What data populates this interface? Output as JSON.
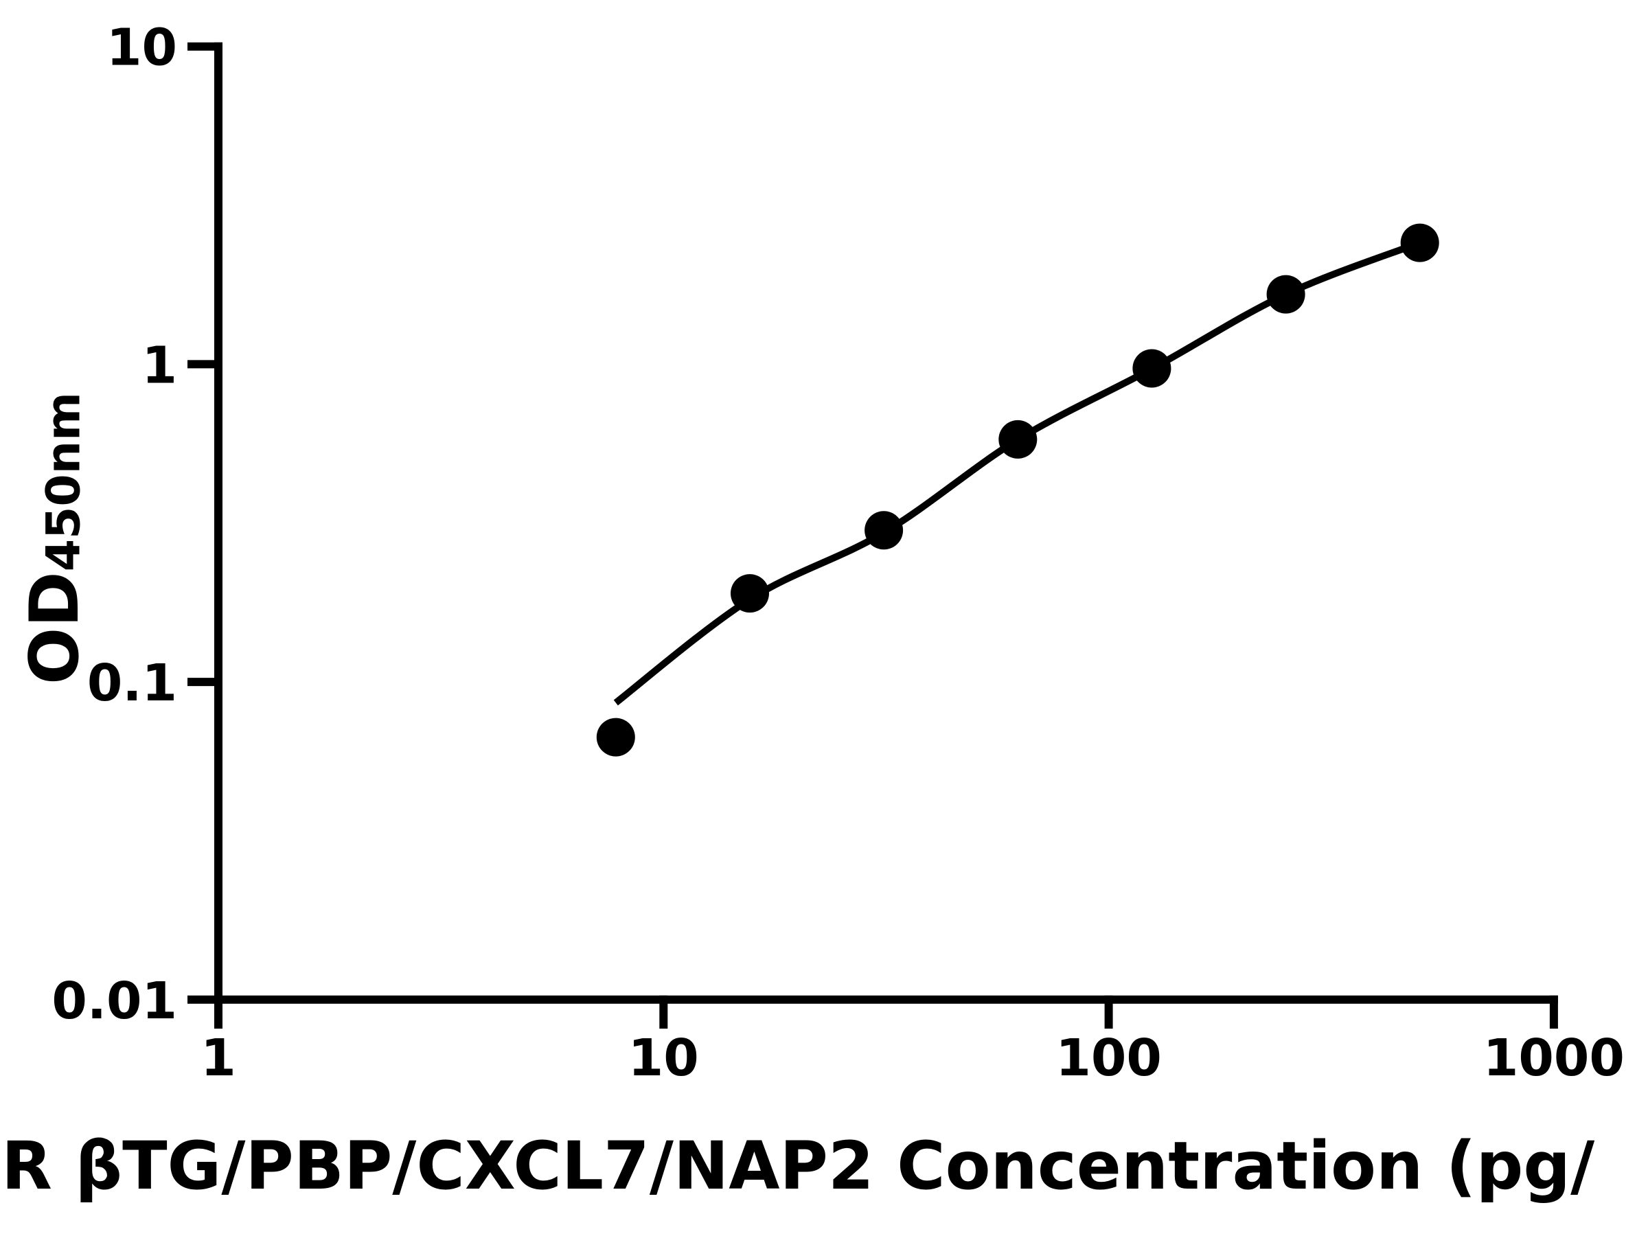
{
  "chart_data": {
    "type": "scatter",
    "title": "",
    "xlabel": "R βTG/PBP/CXCL7/NAP2 Concentration (pg/",
    "ylabel": "OD450nm",
    "ylabel_main": "OD",
    "ylabel_sub": "450nm",
    "x_axis": {
      "scale": "log",
      "range": [
        1,
        1000
      ],
      "tick_values": [
        1,
        10,
        100,
        1000
      ],
      "tick_labels": [
        "1",
        "10",
        "100",
        "1000"
      ]
    },
    "y_axis": {
      "scale": "log",
      "range": [
        0.01,
        10
      ],
      "tick_values": [
        0.01,
        0.1,
        1,
        10
      ],
      "tick_labels": [
        "0.01",
        "0.1",
        "1",
        "10"
      ]
    },
    "grid": false,
    "legend": "none",
    "series": [
      {
        "name": "standard-curve-points",
        "marker": "filled-circle",
        "color": "#000000",
        "points": [
          {
            "x": 7.8125,
            "y": 0.067
          },
          {
            "x": 15.625,
            "y": 0.19
          },
          {
            "x": 31.25,
            "y": 0.3
          },
          {
            "x": 62.5,
            "y": 0.58
          },
          {
            "x": 125,
            "y": 0.97
          },
          {
            "x": 250,
            "y": 1.66
          },
          {
            "x": 500,
            "y": 2.41
          }
        ]
      }
    ],
    "fit_curve": {
      "name": "4pl-fit-line",
      "color": "#000000",
      "points": [
        {
          "x": 7.8125,
          "y": 0.086
        },
        {
          "x": 15.625,
          "y": 0.182
        },
        {
          "x": 31.25,
          "y": 0.295
        },
        {
          "x": 62.5,
          "y": 0.579
        },
        {
          "x": 125,
          "y": 0.967
        },
        {
          "x": 250,
          "y": 1.66
        },
        {
          "x": 500,
          "y": 2.41
        }
      ]
    },
    "colors": {
      "foreground": "#000000",
      "background": "#ffffff"
    }
  }
}
